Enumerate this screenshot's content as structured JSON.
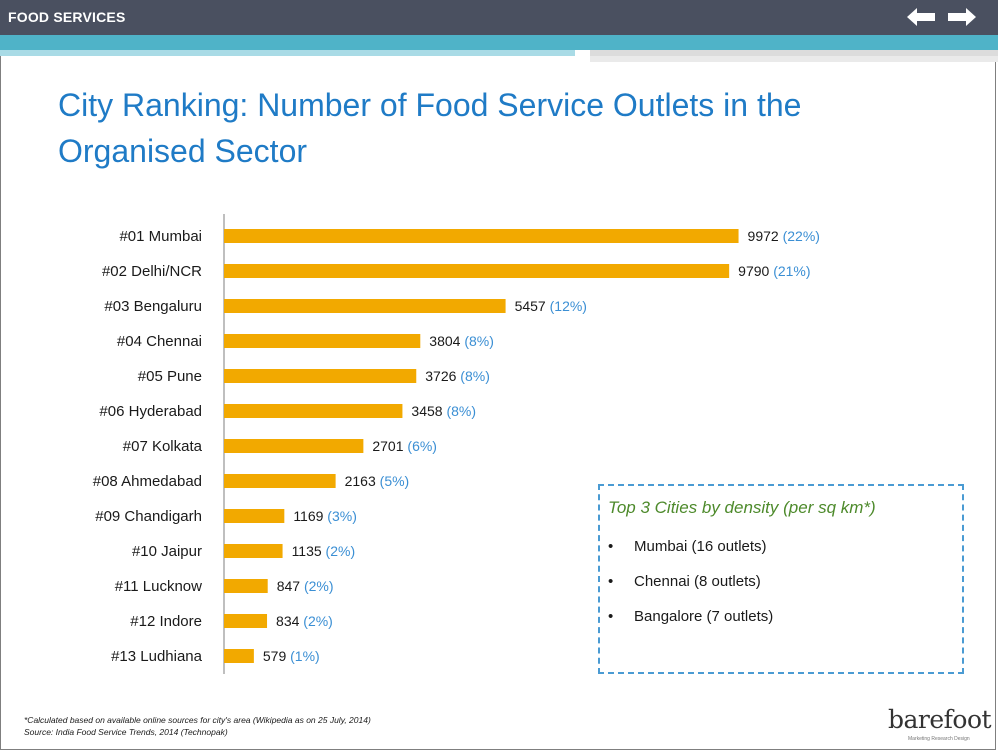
{
  "header": {
    "section": "FOOD SERVICES"
  },
  "slide": {
    "title_line1": "City Ranking: Number of Food Service Outlets in the",
    "title_line2": "Organised Sector"
  },
  "chart_data": {
    "type": "bar",
    "orientation": "horizontal",
    "categories": [
      "#01 Mumbai",
      "#02 Delhi/NCR",
      "#03 Bengaluru",
      "#04 Chennai",
      "#05 Pune",
      "#06 Hyderabad",
      "#07 Kolkata",
      "#08 Ahmedabad",
      "#09 Chandigarh",
      "#10 Jaipur",
      "#11 Lucknow",
      "#12 Indore",
      "#13 Ludhiana"
    ],
    "values": [
      9972,
      9790,
      5457,
      3804,
      3726,
      3458,
      2701,
      2163,
      1169,
      1135,
      847,
      834,
      579
    ],
    "percent_labels": [
      "(22%)",
      "(21%)",
      "(12%)",
      "(8%)",
      "(8%)",
      "(8%)",
      "(6%)",
      "(5%)",
      "(3%)",
      "(2%)",
      "(2%)",
      "(2%)",
      "(1%)"
    ],
    "xlim": [
      0,
      10000
    ],
    "bar_color": "#f2a900",
    "percent_color": "#3b8fd4",
    "grid": false,
    "legend": "none"
  },
  "density": {
    "title": "Top 3 Cities by density (per sq km*)",
    "items": [
      "Mumbai (16 outlets)",
      "Chennai (8 outlets)",
      "Bangalore (7 outlets)"
    ],
    "bullet": "•"
  },
  "footnotes": {
    "note1": "*Calculated based on available online sources for city's area (Wikipedia as on 25 July, 2014)",
    "note2": "Source: India Food Service Trends, 2014 (Technopak)"
  },
  "logo": {
    "text": "barefoot",
    "tagline": "Marketing Research Design"
  },
  "icons": {
    "back": "left-arrow-icon",
    "forward": "right-arrow-icon"
  }
}
